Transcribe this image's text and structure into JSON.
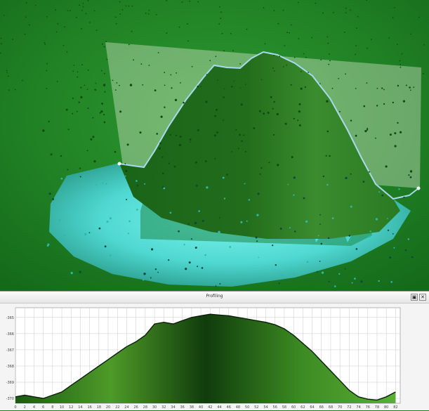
{
  "panel": {
    "title": "Profiling",
    "float_icon": "restore-window-icon",
    "close_icon": "close-icon",
    "float_label": "▣",
    "close_label": "✕"
  },
  "scene": {
    "description_colors": {
      "terrain_green": "#1f7f24",
      "shallow_cyan": "#5ee8e0",
      "profile_line": "#9fd4e6"
    }
  },
  "chart_data": {
    "type": "area",
    "y_ticks": [
      -365,
      -366,
      -367,
      -368,
      -369,
      -370
    ],
    "ylim": [
      -370.3,
      -364.4
    ],
    "x_ticks": [
      0,
      2,
      4,
      6,
      8,
      10,
      12,
      14,
      16,
      18,
      20,
      22,
      24,
      26,
      28,
      30,
      32,
      34,
      36,
      38,
      40,
      42,
      44,
      46,
      48,
      50,
      52,
      54,
      56,
      58,
      60,
      62,
      64,
      66,
      68,
      70,
      72,
      74,
      76,
      78,
      80,
      82
    ],
    "xlim": [
      0,
      83
    ],
    "grid": true,
    "x": [
      0,
      2,
      4,
      6,
      8,
      10,
      12,
      14,
      16,
      18,
      20,
      22,
      24,
      26,
      28,
      30,
      32,
      34,
      36,
      38,
      40,
      42,
      44,
      46,
      48,
      50,
      52,
      54,
      56,
      58,
      60,
      62,
      64,
      66,
      68,
      70,
      72,
      74,
      76,
      78,
      80,
      82
    ],
    "values": [
      -369.9,
      -369.8,
      -369.9,
      -370.0,
      -369.8,
      -369.6,
      -369.2,
      -368.8,
      -368.4,
      -368.0,
      -367.6,
      -367.2,
      -366.8,
      -366.5,
      -366.1,
      -365.4,
      -365.3,
      -365.4,
      -365.2,
      -365.0,
      -364.9,
      -364.8,
      -364.85,
      -364.9,
      -365.0,
      -365.1,
      -365.2,
      -365.3,
      -365.45,
      -365.7,
      -366.1,
      -366.6,
      -367.1,
      -367.7,
      -368.3,
      -368.9,
      -369.5,
      -369.9,
      -370.05,
      -370.1,
      -369.9,
      -369.6
    ],
    "line_color": "#0a1e0a",
    "fill_colors": [
      "#1c5a14",
      "#4e9a28",
      "#103c0c",
      "#3c8a22",
      "#5cae34"
    ]
  }
}
